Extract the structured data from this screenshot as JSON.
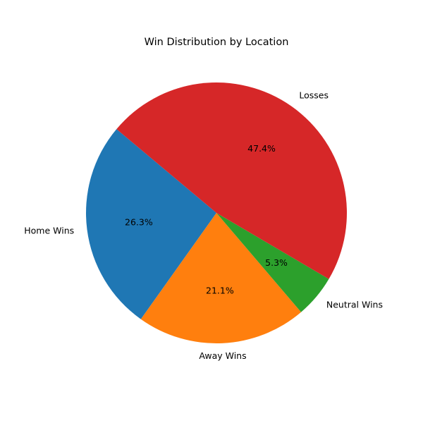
{
  "chart_data": {
    "type": "pie",
    "title": "Win Distribution by Location",
    "start_angle_deg": 140,
    "direction": "counterclockwise",
    "slices": [
      {
        "label": "Home Wins",
        "value": 26.3,
        "pct_label": "26.3%",
        "color": "#1f77b4"
      },
      {
        "label": "Away Wins",
        "value": 21.1,
        "pct_label": "21.1%",
        "color": "#ff7f0e"
      },
      {
        "label": "Neutral Wins",
        "value": 5.3,
        "pct_label": "5.3%",
        "color": "#2ca02c"
      },
      {
        "label": "Losses",
        "value": 47.4,
        "pct_label": "47.4%",
        "color": "#d62728"
      }
    ]
  }
}
